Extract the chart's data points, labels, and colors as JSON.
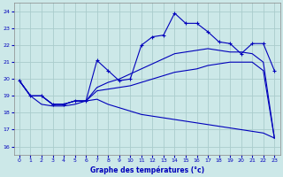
{
  "xlabel": "Graphe des températures (°c)",
  "bg_color": "#cce8e8",
  "line_color": "#0000bb",
  "grid_color": "#aacccc",
  "xlim": [
    -0.5,
    23.5
  ],
  "ylim": [
    15.5,
    24.5
  ],
  "xticks": [
    0,
    1,
    2,
    3,
    4,
    5,
    6,
    7,
    8,
    9,
    10,
    11,
    12,
    13,
    14,
    15,
    16,
    17,
    18,
    19,
    20,
    21,
    22,
    23
  ],
  "yticks": [
    16,
    17,
    18,
    19,
    20,
    21,
    22,
    23,
    24
  ],
  "line1_x": [
    0,
    1,
    2,
    3,
    4,
    5,
    6,
    7,
    8,
    9,
    10,
    11,
    12,
    13,
    14,
    15,
    16,
    17,
    18,
    19,
    20,
    21,
    22,
    23
  ],
  "line1_y": [
    19.9,
    19.0,
    19.0,
    18.5,
    18.5,
    18.7,
    18.7,
    21.1,
    20.5,
    19.9,
    20.0,
    22.0,
    22.5,
    22.6,
    23.9,
    23.3,
    23.3,
    22.8,
    22.2,
    22.1,
    21.5,
    22.1,
    22.1,
    20.5
  ],
  "line2_x": [
    0,
    1,
    2,
    3,
    4,
    5,
    6,
    7,
    8,
    9,
    10,
    11,
    12,
    13,
    14,
    15,
    16,
    17,
    18,
    19,
    20,
    21,
    22,
    23
  ],
  "line2_y": [
    19.9,
    19.0,
    19.0,
    18.5,
    18.5,
    18.7,
    18.7,
    19.5,
    19.8,
    20.0,
    20.3,
    20.6,
    20.9,
    21.2,
    21.5,
    21.6,
    21.7,
    21.8,
    21.7,
    21.6,
    21.6,
    21.5,
    21.0,
    16.5
  ],
  "line3_x": [
    0,
    1,
    2,
    3,
    4,
    5,
    6,
    7,
    8,
    9,
    10,
    11,
    12,
    13,
    14,
    15,
    16,
    17,
    18,
    19,
    20,
    21,
    22,
    23
  ],
  "line3_y": [
    19.9,
    19.0,
    19.0,
    18.5,
    18.5,
    18.7,
    18.7,
    19.3,
    19.4,
    19.5,
    19.6,
    19.8,
    20.0,
    20.2,
    20.4,
    20.5,
    20.6,
    20.8,
    20.9,
    21.0,
    21.0,
    21.0,
    20.5,
    16.5
  ],
  "line4_x": [
    0,
    1,
    2,
    3,
    4,
    5,
    6,
    7,
    8,
    9,
    10,
    11,
    12,
    13,
    14,
    15,
    16,
    17,
    18,
    19,
    20,
    21,
    22,
    23
  ],
  "line4_y": [
    19.9,
    19.0,
    18.5,
    18.4,
    18.4,
    18.5,
    18.7,
    18.8,
    18.5,
    18.3,
    18.1,
    17.9,
    17.8,
    17.7,
    17.6,
    17.5,
    17.4,
    17.3,
    17.2,
    17.1,
    17.0,
    16.9,
    16.8,
    16.5
  ]
}
